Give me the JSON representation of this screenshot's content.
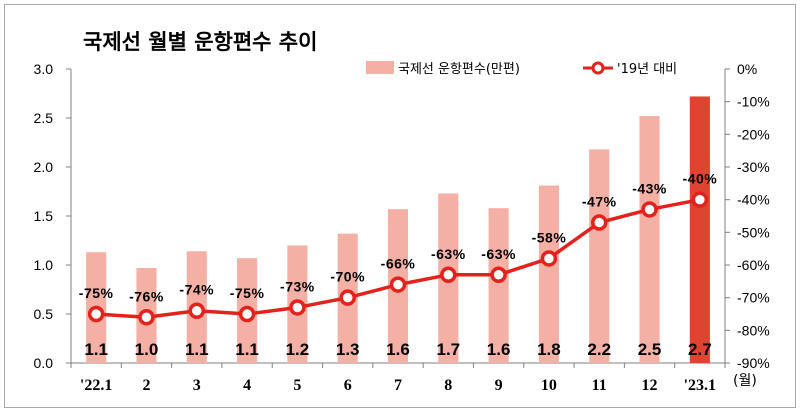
{
  "chart_data": {
    "type": "bar",
    "title": "국제선 월별 운항편수 추이",
    "categories": [
      "'22.1",
      "2",
      "3",
      "4",
      "5",
      "6",
      "7",
      "8",
      "9",
      "10",
      "11",
      "12",
      "'23.1"
    ],
    "x_unit_label": "(월)",
    "series": [
      {
        "name": "국제선 운항편수(만편)",
        "type": "bar",
        "axis": "left",
        "values": [
          1.13,
          0.97,
          1.14,
          1.07,
          1.2,
          1.32,
          1.57,
          1.73,
          1.58,
          1.81,
          2.18,
          2.52,
          2.72
        ],
        "labels": [
          "1.1",
          "1.0",
          "1.1",
          "1.1",
          "1.2",
          "1.3",
          "1.6",
          "1.7",
          "1.6",
          "1.8",
          "2.2",
          "2.5",
          "2.7"
        ],
        "color": "#f4b0a5",
        "highlight_last_color": "#e0432f"
      },
      {
        "name": "'19년 대비",
        "type": "line",
        "axis": "right",
        "values": [
          -75,
          -76,
          -74,
          -75,
          -73,
          -70,
          -66,
          -63,
          -63,
          -58,
          -47,
          -43,
          -40
        ],
        "labels": [
          "-75%",
          "-76%",
          "-74%",
          "-75%",
          "-73%",
          "-70%",
          "-66%",
          "-63%",
          "-63%",
          "-58%",
          "-47%",
          "-43%",
          "-40%"
        ],
        "color": "#e3221c"
      }
    ],
    "y_left": {
      "range": [
        0,
        3.0
      ],
      "ticks": [
        0,
        0.5,
        1.0,
        1.5,
        2.0,
        2.5,
        3.0
      ],
      "tick_labels": [
        "0.0",
        "0.5",
        "1.0",
        "1.5",
        "2.0",
        "2.5",
        "3.0"
      ]
    },
    "y_right": {
      "range": [
        -90,
        0
      ],
      "ticks": [
        0,
        -10,
        -20,
        -30,
        -40,
        -50,
        -60,
        -70,
        -80,
        -90
      ],
      "tick_labels": [
        "0%",
        "-10%",
        "-20%",
        "-30%",
        "-40%",
        "-50%",
        "-60%",
        "-70%",
        "-80%",
        "-90%"
      ]
    },
    "grid": false,
    "legend": {
      "position": "top-right"
    }
  }
}
